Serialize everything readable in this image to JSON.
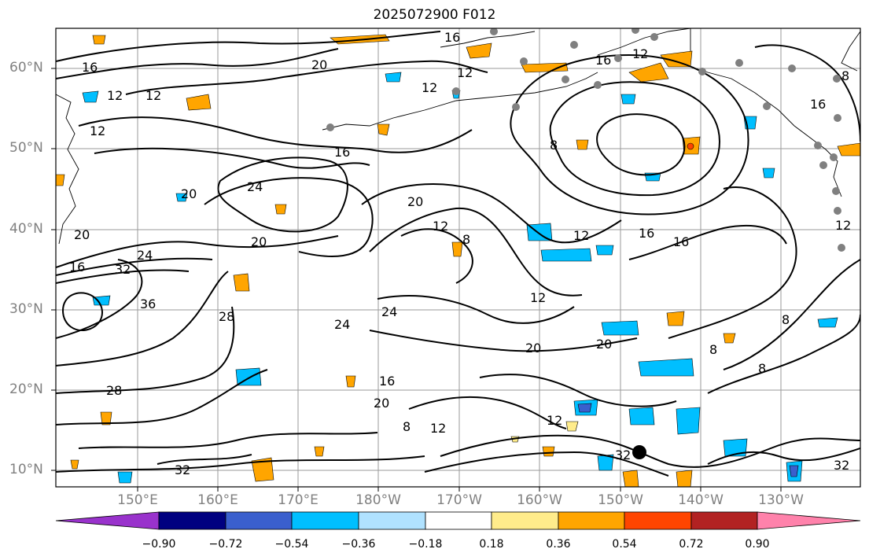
{
  "title": "2025072900 F012",
  "lat_labels": [
    "60°N",
    "50°N",
    "40°N",
    "30°N",
    "20°N",
    "10°N"
  ],
  "lon_labels": [
    "150°E",
    "160°E",
    "170°E",
    "180°W",
    "170°W",
    "160°W",
    "150°W",
    "140°W",
    "130°W"
  ],
  "colorbar": {
    "ticks": [
      "−0.90",
      "−0.72",
      "−0.54",
      "−0.36",
      "−0.18",
      "0.18",
      "0.36",
      "0.54",
      "0.72",
      "0.90"
    ],
    "colors": [
      "#9932cc",
      "#000080",
      "#3a5fcd",
      "#00bfff",
      "#b0e2ff",
      "#ffffff",
      "#ffec8b",
      "#ffa500",
      "#ff4500",
      "#b22222",
      "#ff82ab"
    ]
  },
  "contour_labels": [
    {
      "text": "16",
      "id": "a"
    },
    {
      "text": "16",
      "id": "b"
    },
    {
      "text": "20",
      "id": "c"
    },
    {
      "text": "12",
      "id": "d"
    },
    {
      "text": "12",
      "id": "e"
    },
    {
      "text": "12",
      "id": "f"
    },
    {
      "text": "12",
      "id": "g"
    },
    {
      "text": "16",
      "id": "h"
    },
    {
      "text": "12",
      "id": "i"
    },
    {
      "text": "12",
      "id": "j"
    },
    {
      "text": "8",
      "id": "k"
    },
    {
      "text": "16",
      "id": "l"
    },
    {
      "text": "24",
      "id": "m"
    },
    {
      "text": "20",
      "id": "n"
    },
    {
      "text": "12",
      "id": "o"
    },
    {
      "text": "8",
      "id": "p"
    },
    {
      "text": "12",
      "id": "q"
    },
    {
      "text": "16",
      "id": "r"
    },
    {
      "text": "16",
      "id": "s"
    },
    {
      "text": "20",
      "id": "t"
    },
    {
      "text": "24",
      "id": "u"
    },
    {
      "text": "32",
      "id": "v"
    },
    {
      "text": "16",
      "id": "w"
    },
    {
      "text": "36",
      "id": "x"
    },
    {
      "text": "28",
      "id": "y"
    },
    {
      "text": "20",
      "id": "z"
    },
    {
      "text": "24",
      "id": "aa"
    },
    {
      "text": "24",
      "id": "ab"
    },
    {
      "text": "12",
      "id": "ac"
    },
    {
      "text": "20",
      "id": "ad"
    },
    {
      "text": "20",
      "id": "ae"
    },
    {
      "text": "8",
      "id": "af"
    },
    {
      "text": "8",
      "id": "ag"
    },
    {
      "text": "8",
      "id": "ah"
    },
    {
      "text": "28",
      "id": "ai"
    },
    {
      "text": "16",
      "id": "aj"
    },
    {
      "text": "20",
      "id": "ak"
    },
    {
      "text": "8",
      "id": "al"
    },
    {
      "text": "12",
      "id": "am"
    },
    {
      "text": "32",
      "id": "an"
    },
    {
      "text": "32",
      "id": "ao"
    },
    {
      "text": "12",
      "id": "ap"
    },
    {
      "text": "32",
      "id": "aq"
    },
    {
      "text": "20",
      "id": "ar"
    },
    {
      "text": "8",
      "id": "as"
    },
    {
      "text": "16",
      "id": "at"
    },
    {
      "text": "12",
      "id": "au"
    }
  ]
}
